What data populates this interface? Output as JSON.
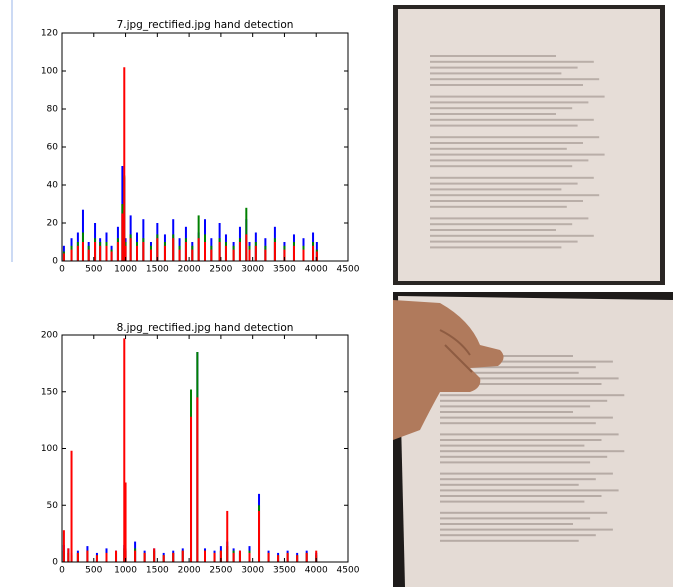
{
  "chart_data": [
    {
      "type": "bar",
      "title": "7.jpg_rectified.jpg hand detection",
      "x": [
        30,
        150,
        250,
        330,
        420,
        520,
        600,
        700,
        780,
        880,
        950,
        980,
        1000,
        1080,
        1180,
        1280,
        1400,
        1500,
        1620,
        1750,
        1850,
        1950,
        2050,
        2150,
        2250,
        2350,
        2480,
        2580,
        2700,
        2800,
        2900,
        2950,
        3050,
        3200,
        3350,
        3500,
        3650,
        3800,
        3950,
        4010
      ],
      "series": [
        {
          "color": "#0000ff",
          "values": [
            8,
            12,
            15,
            27,
            10,
            20,
            12,
            15,
            8,
            18,
            50,
            44,
            12,
            24,
            15,
            22,
            10,
            20,
            14,
            22,
            12,
            18,
            10,
            15,
            22,
            12,
            20,
            14,
            10,
            18,
            22,
            10,
            15,
            12,
            18,
            10,
            14,
            12,
            15,
            10
          ]
        },
        {
          "color": "#008000",
          "values": [
            5,
            8,
            10,
            15,
            8,
            12,
            10,
            10,
            6,
            12,
            30,
            45,
            10,
            14,
            10,
            12,
            8,
            14,
            10,
            14,
            8,
            12,
            8,
            24,
            14,
            8,
            12,
            10,
            8,
            12,
            28,
            8,
            10,
            8,
            12,
            8,
            10,
            8,
            10,
            6
          ]
        },
        {
          "color": "#ff0000",
          "values": [
            4,
            6,
            8,
            10,
            6,
            10,
            8,
            8,
            5,
            10,
            25,
            102,
            8,
            12,
            8,
            10,
            6,
            12,
            8,
            12,
            6,
            10,
            6,
            12,
            10,
            6,
            10,
            8,
            6,
            10,
            14,
            6,
            8,
            6,
            10,
            6,
            8,
            6,
            8,
            5
          ]
        }
      ],
      "xlim": [
        0,
        4500
      ],
      "xticks": [
        0,
        500,
        1000,
        1500,
        2000,
        2500,
        3000,
        3500,
        4000,
        4500
      ],
      "ylim": [
        0,
        120
      ],
      "yticks": [
        0,
        20,
        40,
        60,
        80,
        100,
        120
      ]
    },
    {
      "type": "bar",
      "title": "8.jpg_rectified.jpg hand detection",
      "x": [
        30,
        100,
        150,
        250,
        400,
        550,
        700,
        850,
        980,
        1000,
        1150,
        1300,
        1450,
        1600,
        1750,
        1900,
        2030,
        2130,
        2250,
        2400,
        2500,
        2600,
        2700,
        2800,
        2950,
        3100,
        3250,
        3400,
        3550,
        3700,
        3850,
        4000
      ],
      "series": [
        {
          "color": "#0000ff",
          "values": [
            15,
            12,
            8,
            10,
            14,
            8,
            12,
            10,
            15,
            12,
            18,
            10,
            12,
            8,
            10,
            12,
            20,
            185,
            12,
            10,
            14,
            18,
            12,
            10,
            14,
            60,
            10,
            8,
            10,
            8,
            10,
            8
          ]
        },
        {
          "color": "#008000",
          "values": [
            10,
            8,
            6,
            8,
            10,
            6,
            8,
            8,
            12,
            10,
            12,
            8,
            10,
            6,
            8,
            10,
            152,
            185,
            10,
            8,
            10,
            14,
            10,
            8,
            10,
            50,
            8,
            6,
            8,
            6,
            8,
            6
          ]
        },
        {
          "color": "#ff0000",
          "values": [
            28,
            12,
            98,
            8,
            10,
            6,
            8,
            10,
            197,
            70,
            10,
            8,
            12,
            6,
            8,
            10,
            128,
            145,
            10,
            8,
            10,
            45,
            8,
            10,
            8,
            45,
            8,
            6,
            8,
            6,
            8,
            10
          ]
        }
      ],
      "xlim": [
        0,
        4500
      ],
      "xticks": [
        0,
        500,
        1000,
        1500,
        2000,
        2500,
        3000,
        3500,
        4000,
        4500
      ],
      "ylim": [
        0,
        200
      ],
      "yticks": [
        0,
        50,
        100,
        150,
        200
      ]
    }
  ]
}
